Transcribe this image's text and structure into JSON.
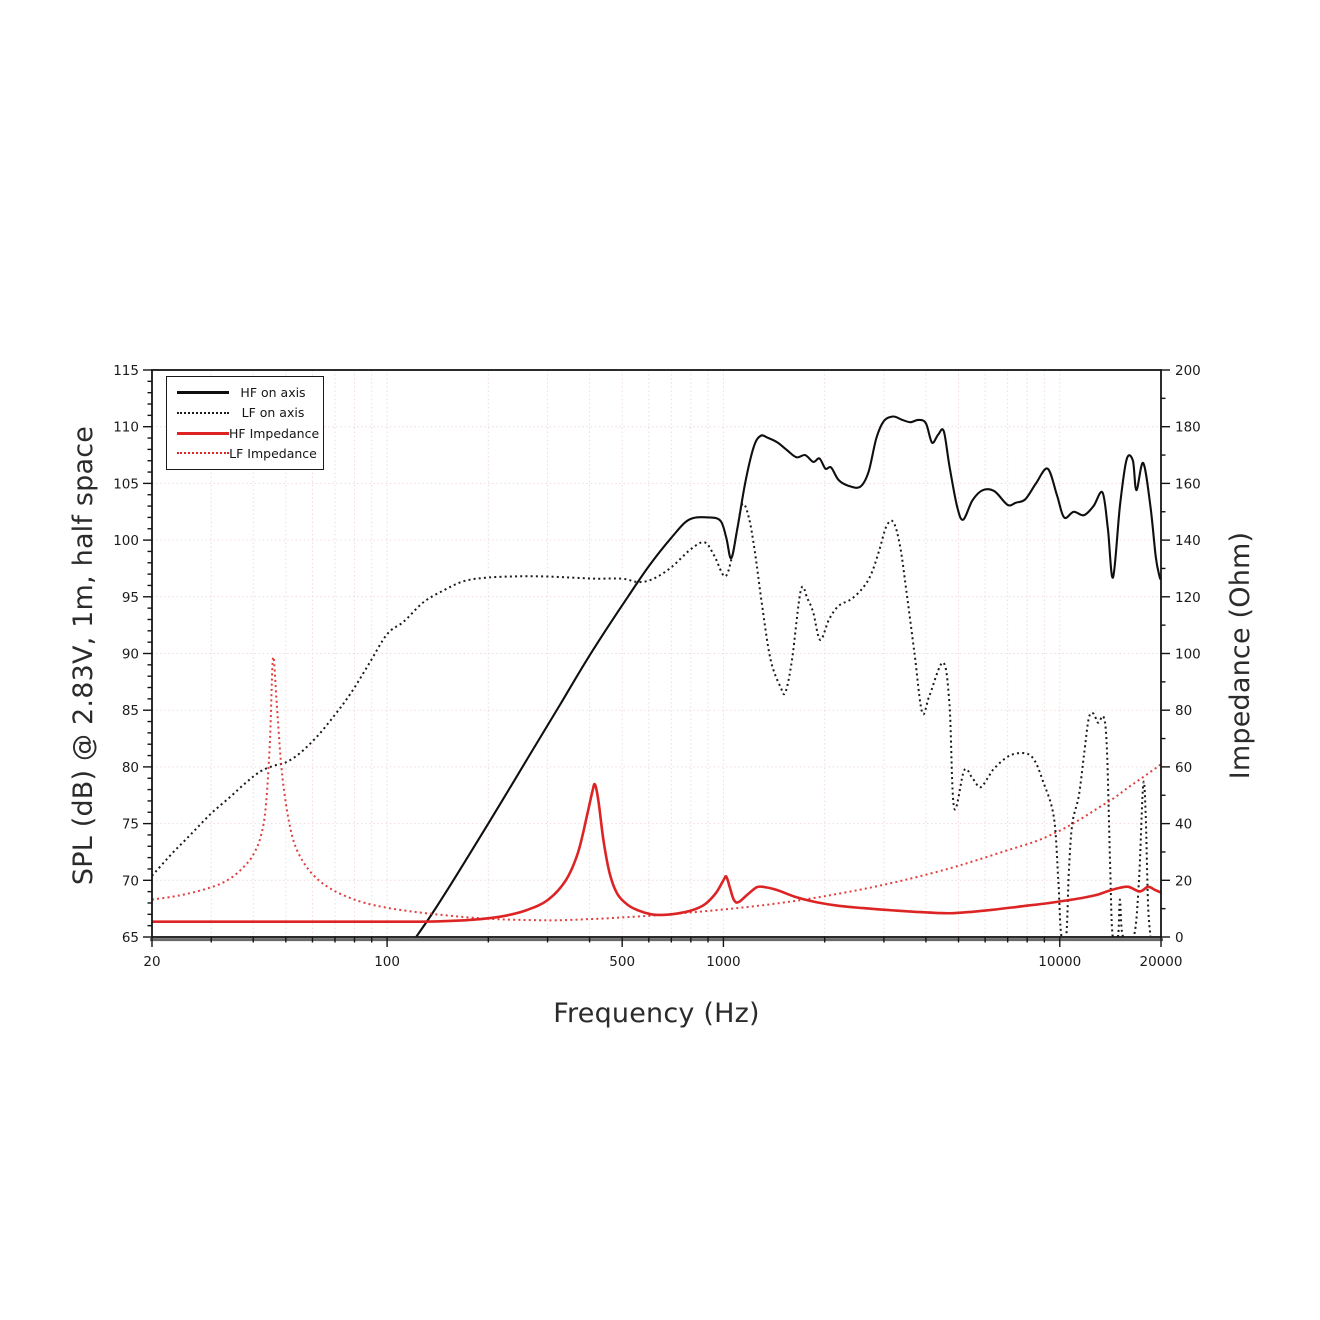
{
  "chart_data": {
    "type": "line",
    "title": "",
    "xlabel": "Frequency (Hz)",
    "ylabel_left": "SPL (dB) @ 2.83V, 1m, half space",
    "ylabel_right": "Impedance (Ohm)",
    "x_axis": {
      "scale": "log",
      "min": 20,
      "max": 20000,
      "major_ticks": [
        {
          "f": 20,
          "label": "20"
        },
        {
          "f": 100,
          "label": "100"
        },
        {
          "f": 500,
          "label": "500"
        },
        {
          "f": 1000,
          "label": "1000"
        },
        {
          "f": 10000,
          "label": "10000"
        },
        {
          "f": 20000,
          "label": "20000"
        }
      ],
      "minor_ticks": [
        30,
        40,
        50,
        60,
        70,
        80,
        90,
        200,
        300,
        400,
        600,
        700,
        800,
        900,
        2000,
        3000,
        4000,
        5000,
        6000,
        7000,
        8000,
        9000
      ]
    },
    "y_left": {
      "min": 65,
      "max": 115,
      "tick_step": 5,
      "minor_step": 1,
      "ticks": [
        65,
        70,
        75,
        80,
        85,
        90,
        95,
        100,
        105,
        110,
        115
      ]
    },
    "y_right": {
      "min": 0,
      "max": 200,
      "tick_step": 20,
      "minor_step": 10,
      "ticks": [
        0,
        20,
        40,
        60,
        80,
        100,
        120,
        140,
        160,
        180,
        200
      ]
    },
    "grid": {
      "on": true,
      "color": "#f1dada",
      "style": "dotted",
      "x_lines": [
        30,
        40,
        50,
        60,
        70,
        80,
        90,
        100,
        200,
        300,
        400,
        500,
        600,
        700,
        800,
        900,
        1000,
        2000,
        3000,
        4000,
        5000,
        6000,
        7000,
        8000,
        9000,
        10000
      ],
      "y_lines": [
        70,
        75,
        80,
        85,
        90,
        95,
        100,
        105,
        110
      ]
    },
    "legend": {
      "position": "top-left",
      "items": [
        {
          "label": "HF on axis",
          "color": "#0f0f0f",
          "line": "solid"
        },
        {
          "label": "LF on axis",
          "color": "#1a1a1a",
          "line": "dotted"
        },
        {
          "label": "HF Impedance",
          "color": "#dd2424",
          "line": "solid"
        },
        {
          "label": "LF Impedance",
          "color": "#dd2424",
          "line": "dotted"
        }
      ]
    },
    "series": [
      {
        "id": "hf_spl",
        "name": "HF on axis",
        "axis": "left",
        "color": "#0f0f0f",
        "line": "solid",
        "points": [
          [
            122,
            65
          ],
          [
            135,
            66.9
          ],
          [
            150,
            69.0
          ],
          [
            170,
            71.6
          ],
          [
            200,
            75.0
          ],
          [
            240,
            78.9
          ],
          [
            280,
            82.2
          ],
          [
            330,
            85.7
          ],
          [
            390,
            89.3
          ],
          [
            450,
            92.2
          ],
          [
            520,
            95.0
          ],
          [
            600,
            97.7
          ],
          [
            700,
            100.2
          ],
          [
            790,
            101.8
          ],
          [
            900,
            102.0
          ],
          [
            980,
            101.7
          ],
          [
            1020,
            100.2
          ],
          [
            1055,
            98.4
          ],
          [
            1100,
            101.0
          ],
          [
            1160,
            105.0
          ],
          [
            1230,
            108.2
          ],
          [
            1290,
            109.2
          ],
          [
            1360,
            109.0
          ],
          [
            1450,
            108.6
          ],
          [
            1550,
            107.9
          ],
          [
            1650,
            107.3
          ],
          [
            1750,
            107.5
          ],
          [
            1850,
            106.9
          ],
          [
            1930,
            107.2
          ],
          [
            2010,
            106.3
          ],
          [
            2090,
            106.4
          ],
          [
            2200,
            105.3
          ],
          [
            2350,
            104.8
          ],
          [
            2550,
            104.7
          ],
          [
            2700,
            106.0
          ],
          [
            2850,
            109.0
          ],
          [
            3000,
            110.5
          ],
          [
            3200,
            110.9
          ],
          [
            3400,
            110.6
          ],
          [
            3600,
            110.4
          ],
          [
            3800,
            110.6
          ],
          [
            4000,
            110.3
          ],
          [
            4170,
            108.6
          ],
          [
            4350,
            109.3
          ],
          [
            4520,
            109.6
          ],
          [
            4700,
            106.5
          ],
          [
            4950,
            103.0
          ],
          [
            5160,
            101.8
          ],
          [
            5500,
            103.5
          ],
          [
            5900,
            104.4
          ],
          [
            6400,
            104.3
          ],
          [
            7000,
            103.1
          ],
          [
            7400,
            103.3
          ],
          [
            7900,
            103.6
          ],
          [
            8500,
            105.0
          ],
          [
            9200,
            106.3
          ],
          [
            9800,
            104.0
          ],
          [
            10300,
            102.0
          ],
          [
            11000,
            102.5
          ],
          [
            11800,
            102.2
          ],
          [
            12600,
            103.0
          ],
          [
            13400,
            104.2
          ],
          [
            13900,
            101.0
          ],
          [
            14400,
            96.7
          ],
          [
            15100,
            103.0
          ],
          [
            15800,
            107.1
          ],
          [
            16500,
            107.0
          ],
          [
            16900,
            104.4
          ],
          [
            17700,
            106.8
          ],
          [
            18600,
            103.0
          ],
          [
            19300,
            98.5
          ],
          [
            19800,
            96.8
          ],
          [
            20000,
            96.5
          ]
        ]
      },
      {
        "id": "lf_spl",
        "name": "LF on axis",
        "axis": "left",
        "color": "#1a1a1a",
        "line": "dotted",
        "points": [
          [
            20,
            70.4
          ],
          [
            23,
            72.4
          ],
          [
            26,
            74.0
          ],
          [
            30,
            75.9
          ],
          [
            34,
            77.3
          ],
          [
            38,
            78.6
          ],
          [
            42,
            79.6
          ],
          [
            46,
            80.1
          ],
          [
            50,
            80.4
          ],
          [
            55,
            81.2
          ],
          [
            62,
            82.7
          ],
          [
            70,
            84.6
          ],
          [
            78,
            86.5
          ],
          [
            88,
            89.0
          ],
          [
            100,
            91.7
          ],
          [
            112,
            92.8
          ],
          [
            128,
            94.5
          ],
          [
            148,
            95.6
          ],
          [
            170,
            96.4
          ],
          [
            200,
            96.7
          ],
          [
            240,
            96.8
          ],
          [
            290,
            96.8
          ],
          [
            350,
            96.7
          ],
          [
            420,
            96.6
          ],
          [
            500,
            96.6
          ],
          [
            560,
            96.3
          ],
          [
            620,
            96.6
          ],
          [
            700,
            97.6
          ],
          [
            800,
            99.2
          ],
          [
            880,
            99.8
          ],
          [
            940,
            98.6
          ],
          [
            1010,
            96.8
          ],
          [
            1060,
            98.5
          ],
          [
            1100,
            101.0
          ],
          [
            1140,
            103.2
          ],
          [
            1190,
            102.0
          ],
          [
            1240,
            99.0
          ],
          [
            1300,
            94.5
          ],
          [
            1380,
            89.5
          ],
          [
            1480,
            87.0
          ],
          [
            1530,
            86.6
          ],
          [
            1600,
            89.5
          ],
          [
            1700,
            95.6
          ],
          [
            1780,
            94.8
          ],
          [
            1850,
            93.6
          ],
          [
            1940,
            91.2
          ],
          [
            2060,
            93.0
          ],
          [
            2200,
            94.2
          ],
          [
            2400,
            94.8
          ],
          [
            2600,
            95.8
          ],
          [
            2750,
            97.0
          ],
          [
            2900,
            99.0
          ],
          [
            3050,
            101.2
          ],
          [
            3200,
            101.6
          ],
          [
            3350,
            99.5
          ],
          [
            3500,
            95.5
          ],
          [
            3700,
            90.0
          ],
          [
            3900,
            84.8
          ],
          [
            4100,
            86.3
          ],
          [
            4500,
            89.2
          ],
          [
            4700,
            85.5
          ],
          [
            4850,
            76.4
          ],
          [
            5200,
            79.7
          ],
          [
            5500,
            79.0
          ],
          [
            5800,
            78.2
          ],
          [
            6100,
            79.0
          ],
          [
            6400,
            79.9
          ],
          [
            7100,
            81.0
          ],
          [
            7900,
            81.2
          ],
          [
            8400,
            80.6
          ],
          [
            8900,
            78.8
          ],
          [
            9600,
            75.6
          ],
          [
            9900,
            70.0
          ],
          [
            10100,
            65.2
          ],
          [
            10450,
            65.05
          ],
          [
            10650,
            71.0
          ],
          [
            10900,
            75.0
          ],
          [
            11400,
            77.5
          ],
          [
            11800,
            81.0
          ],
          [
            12200,
            84.3
          ],
          [
            12600,
            84.7
          ],
          [
            13000,
            83.9
          ],
          [
            13500,
            84.4
          ],
          [
            13800,
            81.8
          ],
          [
            14100,
            72.0
          ],
          [
            14350,
            65.2
          ],
          [
            14900,
            65.05
          ],
          [
            15100,
            68.3
          ],
          [
            15400,
            65.1
          ],
          [
            16600,
            65.05
          ],
          [
            17200,
            70.0
          ],
          [
            17700,
            78.4
          ],
          [
            18000,
            76.0
          ],
          [
            18300,
            68.0
          ],
          [
            18600,
            65.1
          ]
        ]
      },
      {
        "id": "hf_imp",
        "name": "HF Impedance",
        "axis": "right",
        "color": "#dd2424",
        "line": "solid",
        "points": [
          [
            20,
            5.4
          ],
          [
            60,
            5.4
          ],
          [
            100,
            5.4
          ],
          [
            140,
            5.5
          ],
          [
            180,
            6.1
          ],
          [
            220,
            7.3
          ],
          [
            260,
            9.5
          ],
          [
            300,
            13.0
          ],
          [
            340,
            20.0
          ],
          [
            370,
            30.0
          ],
          [
            395,
            44.0
          ],
          [
            408,
            51.5
          ],
          [
            415,
            53.8
          ],
          [
            425,
            48.0
          ],
          [
            440,
            34.0
          ],
          [
            460,
            22.0
          ],
          [
            485,
            15.0
          ],
          [
            520,
            11.3
          ],
          [
            560,
            9.3
          ],
          [
            610,
            8.0
          ],
          [
            660,
            7.8
          ],
          [
            720,
            8.2
          ],
          [
            800,
            9.3
          ],
          [
            880,
            11.5
          ],
          [
            950,
            15.5
          ],
          [
            1000,
            20.0
          ],
          [
            1020,
            21.3
          ],
          [
            1045,
            17.5
          ],
          [
            1075,
            13.0
          ],
          [
            1110,
            12.3
          ],
          [
            1180,
            15.0
          ],
          [
            1260,
            17.6
          ],
          [
            1340,
            17.5
          ],
          [
            1450,
            16.5
          ],
          [
            1650,
            14.0
          ],
          [
            1900,
            12.2
          ],
          [
            2200,
            11.0
          ],
          [
            2600,
            10.2
          ],
          [
            3100,
            9.5
          ],
          [
            3700,
            8.9
          ],
          [
            4300,
            8.5
          ],
          [
            4800,
            8.4
          ],
          [
            5500,
            8.9
          ],
          [
            6300,
            9.6
          ],
          [
            7200,
            10.4
          ],
          [
            8200,
            11.2
          ],
          [
            9300,
            12.0
          ],
          [
            10500,
            12.9
          ],
          [
            11800,
            13.9
          ],
          [
            13000,
            15.0
          ],
          [
            14000,
            16.3
          ],
          [
            15000,
            17.3
          ],
          [
            16000,
            17.7
          ],
          [
            17300,
            16.1
          ],
          [
            18300,
            17.7
          ],
          [
            19200,
            16.6
          ],
          [
            20000,
            15.7
          ]
        ]
      },
      {
        "id": "lf_imp",
        "name": "LF Impedance",
        "axis": "right",
        "color": "#dd2424",
        "line": "dotted",
        "points": [
          [
            20,
            13.2
          ],
          [
            23,
            14.2
          ],
          [
            26,
            15.5
          ],
          [
            29,
            17.0
          ],
          [
            32,
            18.8
          ],
          [
            35,
            21.5
          ],
          [
            38,
            25.5
          ],
          [
            40,
            29.0
          ],
          [
            42,
            35.0
          ],
          [
            43.5,
            45.0
          ],
          [
            44.8,
            68.0
          ],
          [
            45.8,
            98.5
          ],
          [
            47,
            82.0
          ],
          [
            48.5,
            60.0
          ],
          [
            50.5,
            44.0
          ],
          [
            53,
            33.0
          ],
          [
            57,
            25.5
          ],
          [
            62,
            20.5
          ],
          [
            68,
            17.0
          ],
          [
            76,
            14.2
          ],
          [
            86,
            12.0
          ],
          [
            100,
            10.3
          ],
          [
            120,
            8.9
          ],
          [
            145,
            7.8
          ],
          [
            175,
            6.9
          ],
          [
            210,
            6.3
          ],
          [
            260,
            6.0
          ],
          [
            320,
            5.9
          ],
          [
            400,
            6.3
          ],
          [
            500,
            6.9
          ],
          [
            620,
            7.6
          ],
          [
            750,
            8.4
          ],
          [
            900,
            9.2
          ],
          [
            1100,
            10.2
          ],
          [
            1350,
            11.4
          ],
          [
            1650,
            12.8
          ],
          [
            2000,
            14.4
          ],
          [
            2500,
            16.5
          ],
          [
            3100,
            18.8
          ],
          [
            3800,
            21.3
          ],
          [
            4700,
            24.2
          ],
          [
            5700,
            27.2
          ],
          [
            7000,
            30.6
          ],
          [
            8500,
            33.8
          ],
          [
            10000,
            37.5
          ],
          [
            11500,
            41.5
          ],
          [
            13000,
            45.5
          ],
          [
            14500,
            49.0
          ],
          [
            16000,
            52.8
          ],
          [
            17500,
            56.0
          ],
          [
            19000,
            59.0
          ],
          [
            20000,
            61.0
          ]
        ]
      }
    ]
  }
}
